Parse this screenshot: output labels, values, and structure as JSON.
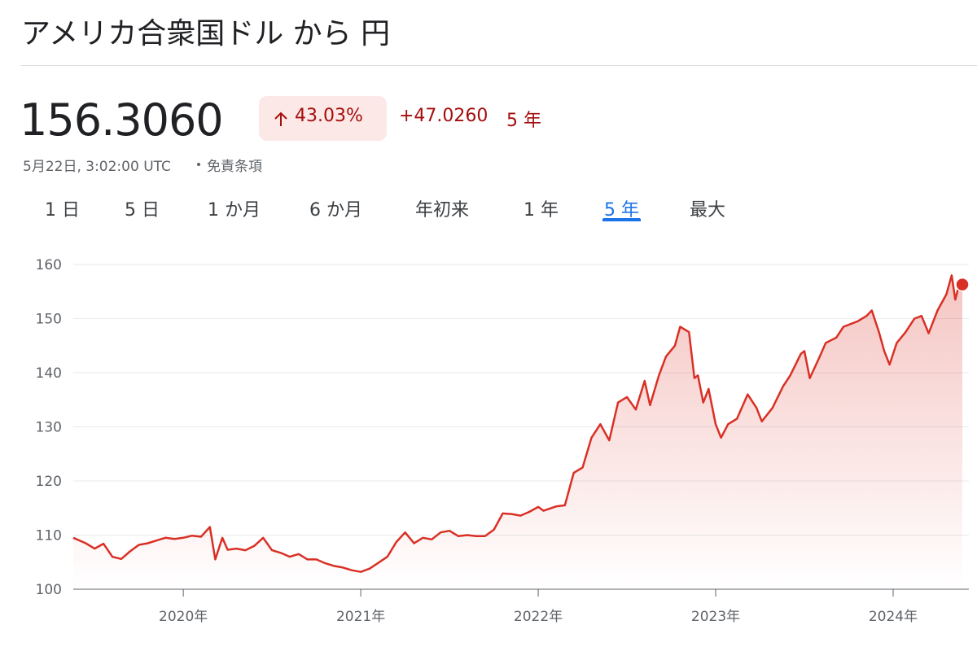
{
  "header": {
    "title": "アメリカ合衆国ドル から 円"
  },
  "quote": {
    "price": "156.3060",
    "change_percent": "43.03%",
    "change": "+47.0260",
    "period": "5 年",
    "timestamp": "5月22日, 3:02:00 UTC",
    "disclaimer": "免責条項"
  },
  "tabs": [
    "1 日",
    "5 日",
    "1 か月",
    "6 か月",
    "年初来",
    "1 年",
    "5 年",
    "最大"
  ],
  "selected_tab": 6,
  "chart_data": {
    "type": "line",
    "color": "#d93025",
    "grid": true,
    "x": [
      2019.38,
      2019.45,
      2019.5,
      2019.55,
      2019.6,
      2019.65,
      2019.7,
      2019.75,
      2019.8,
      2019.85,
      2019.9,
      2019.95,
      2020.0,
      2020.05,
      2020.1,
      2020.15,
      2020.18,
      2020.22,
      2020.25,
      2020.3,
      2020.35,
      2020.4,
      2020.45,
      2020.5,
      2020.55,
      2020.6,
      2020.65,
      2020.7,
      2020.75,
      2020.8,
      2020.85,
      2020.9,
      2020.95,
      2021.0,
      2021.05,
      2021.1,
      2021.15,
      2021.2,
      2021.25,
      2021.3,
      2021.35,
      2021.4,
      2021.45,
      2021.5,
      2021.55,
      2021.6,
      2021.65,
      2021.7,
      2021.75,
      2021.8,
      2021.85,
      2021.9,
      2021.95,
      2022.0,
      2022.03,
      2022.1,
      2022.15,
      2022.2,
      2022.25,
      2022.3,
      2022.35,
      2022.4,
      2022.45,
      2022.5,
      2022.55,
      2022.6,
      2022.63,
      2022.68,
      2022.72,
      2022.77,
      2022.8,
      2022.85,
      2022.88,
      2022.9,
      2022.93,
      2022.96,
      2023.0,
      2023.03,
      2023.07,
      2023.12,
      2023.18,
      2023.23,
      2023.26,
      2023.32,
      2023.38,
      2023.42,
      2023.48,
      2023.5,
      2023.53,
      2023.58,
      2023.62,
      2023.68,
      2023.72,
      2023.8,
      2023.85,
      2023.88,
      2023.92,
      2023.95,
      2023.98,
      2024.02,
      2024.07,
      2024.12,
      2024.16,
      2024.2,
      2024.25,
      2024.3,
      2024.33,
      2024.35,
      2024.37,
      2024.39
    ],
    "values": [
      109.5,
      108.5,
      107.5,
      108.4,
      106.0,
      105.6,
      107.0,
      108.2,
      108.5,
      109.0,
      109.5,
      109.3,
      109.5,
      109.9,
      109.7,
      111.5,
      105.5,
      109.5,
      107.3,
      107.5,
      107.2,
      108.0,
      109.5,
      107.2,
      106.7,
      106.0,
      106.5,
      105.5,
      105.5,
      104.8,
      104.3,
      104.0,
      103.5,
      103.2,
      103.8,
      104.9,
      106.0,
      108.7,
      110.5,
      108.5,
      109.5,
      109.2,
      110.5,
      110.8,
      109.8,
      110.0,
      109.8,
      109.8,
      111.0,
      114.0,
      113.9,
      113.6,
      114.3,
      115.2,
      114.5,
      115.3,
      115.5,
      121.5,
      122.5,
      128.0,
      130.5,
      127.5,
      134.5,
      135.5,
      133.2,
      138.5,
      134.0,
      139.5,
      143.0,
      145.0,
      148.5,
      147.5,
      139.0,
      139.5,
      134.5,
      137.0,
      130.5,
      128.0,
      130.5,
      131.5,
      136.0,
      133.5,
      131.0,
      133.5,
      137.5,
      139.5,
      143.5,
      144.0,
      139.0,
      142.5,
      145.5,
      146.5,
      148.5,
      149.5,
      150.5,
      151.5,
      147.5,
      144.0,
      141.5,
      145.5,
      147.5,
      150.0,
      150.5,
      147.3,
      151.5,
      154.5,
      158.0,
      153.5,
      156.0,
      156.3
    ],
    "xlim": [
      2019.38,
      2024.39
    ],
    "ylim": [
      100,
      160
    ],
    "xticks": [
      {
        "value": 2020,
        "label": "2020年"
      },
      {
        "value": 2021,
        "label": "2021年"
      },
      {
        "value": 2022,
        "label": "2022年"
      },
      {
        "value": 2023,
        "label": "2023年"
      },
      {
        "value": 2024,
        "label": "2024年"
      }
    ],
    "yticks": [
      100,
      110,
      120,
      130,
      140,
      150,
      160
    ]
  }
}
